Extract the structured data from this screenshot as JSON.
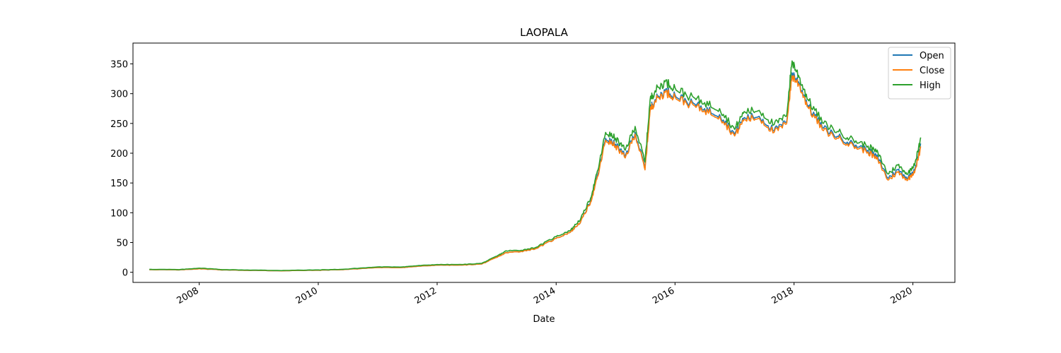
{
  "chart_data": {
    "type": "line",
    "title": "LAOPALA",
    "xlabel": "Date",
    "ylabel": "",
    "xlim": [
      "2006-11-20",
      "2020-09-15"
    ],
    "ylim": [
      -17,
      385
    ],
    "x_ticks": [
      "2008",
      "2010",
      "2012",
      "2014",
      "2016",
      "2018",
      "2020"
    ],
    "y_ticks": [
      0,
      50,
      100,
      150,
      200,
      250,
      300,
      350
    ],
    "grid": false,
    "legend_position": "top-right",
    "x": [
      "2007-03-01",
      "2007-09-01",
      "2008-01-01",
      "2008-06-01",
      "2009-01-01",
      "2009-06-01",
      "2010-01-01",
      "2010-06-01",
      "2011-01-01",
      "2011-06-01",
      "2011-09-01",
      "2012-01-01",
      "2012-06-01",
      "2012-10-01",
      "2013-01-01",
      "2013-03-01",
      "2013-06-01",
      "2013-09-01",
      "2014-01-01",
      "2014-04-01",
      "2014-06-01",
      "2014-08-01",
      "2014-09-15",
      "2014-11-01",
      "2015-01-01",
      "2015-03-01",
      "2015-05-01",
      "2015-07-01",
      "2015-08-01",
      "2015-09-01",
      "2015-11-01",
      "2016-01-01",
      "2016-04-01",
      "2016-07-01",
      "2016-10-01",
      "2017-01-01",
      "2017-03-01",
      "2017-06-01",
      "2017-09-01",
      "2017-11-15",
      "2017-12-20",
      "2018-02-01",
      "2018-04-01",
      "2018-07-01",
      "2018-10-01",
      "2019-01-01",
      "2019-04-01",
      "2019-06-01",
      "2019-08-01",
      "2019-10-01",
      "2019-12-01",
      "2020-01-15",
      "2020-02-20"
    ],
    "series": [
      {
        "name": "Open",
        "color": "#1f77b4",
        "values": [
          4.5,
          4,
          6,
          4,
          3,
          2.5,
          3.5,
          4.5,
          8,
          8,
          10,
          12,
          12,
          14,
          25,
          33,
          35,
          40,
          57,
          68,
          85,
          120,
          165,
          225,
          215,
          195,
          235,
          175,
          275,
          290,
          305,
          298,
          285,
          275,
          265,
          232,
          260,
          262,
          238,
          252,
          335,
          318,
          278,
          242,
          228,
          215,
          205,
          192,
          158,
          172,
          158,
          175,
          215
        ]
      },
      {
        "name": "Close",
        "color": "#ff7f0e",
        "values": [
          4.5,
          4,
          6,
          4,
          3,
          2.5,
          3.5,
          4.5,
          8,
          8,
          10,
          12,
          12,
          14,
          25,
          33,
          35,
          40,
          57,
          68,
          85,
          118,
          162,
          222,
          212,
          192,
          232,
          172,
          272,
          288,
          302,
          295,
          282,
          272,
          262,
          229,
          257,
          259,
          235,
          249,
          330,
          315,
          275,
          238,
          225,
          212,
          202,
          188,
          155,
          168,
          155,
          172,
          210
        ]
      },
      {
        "name": "High",
        "color": "#2ca02c",
        "values": [
          5,
          4.5,
          7,
          4.5,
          3.5,
          3,
          4,
          5,
          9,
          9,
          11,
          13,
          13,
          15,
          27,
          36,
          37,
          42,
          60,
          71,
          90,
          125,
          172,
          235,
          225,
          205,
          245,
          185,
          290,
          305,
          320,
          310,
          295,
          285,
          275,
          240,
          270,
          272,
          248,
          262,
          355,
          328,
          288,
          250,
          236,
          222,
          212,
          200,
          165,
          180,
          165,
          185,
          225
        ]
      }
    ]
  }
}
